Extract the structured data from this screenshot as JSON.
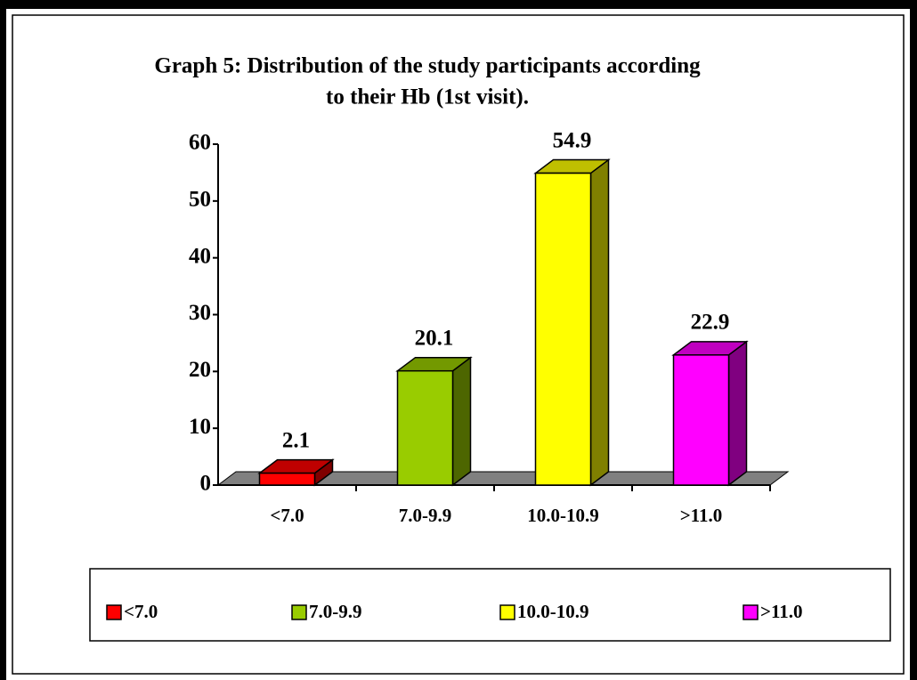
{
  "chart_data": {
    "type": "bar3d",
    "title": [
      "Graph 5: Distribution of the study participants according",
      "to their Hb (1st visit)."
    ],
    "categories": [
      "<7.0",
      "7.0-9.9",
      "10.0-10.9",
      ">11.0"
    ],
    "values": [
      2.1,
      20.1,
      54.9,
      22.9
    ],
    "colors": [
      "#ff0000",
      "#99cc00",
      "#ffff00",
      "#ff00ff"
    ],
    "ylim": [
      0,
      60
    ],
    "yticks": [
      0,
      10,
      20,
      30,
      40,
      50,
      60
    ],
    "legend": "bottom"
  }
}
